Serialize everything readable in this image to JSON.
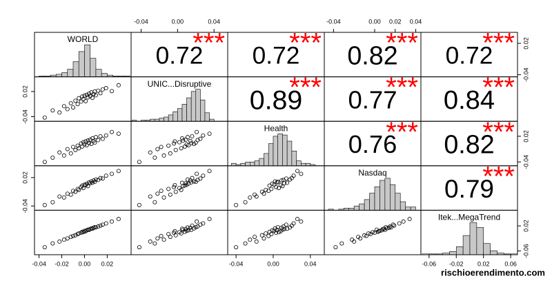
{
  "chart_data": {
    "type": "correlation-matrix",
    "variables": [
      {
        "name": "WORLD",
        "lim": [
          -0.044,
          0.041
        ],
        "xticks": [
          -0.04,
          -0.02,
          {
            "value": 0,
            "label": "0.00"
          },
          0.02
        ],
        "yticks": [
          -0.04,
          0.02
        ],
        "bins": [
          -0.04,
          -0.035,
          -0.03,
          -0.025,
          -0.02,
          -0.015,
          -0.01,
          -0.005,
          0,
          0.005,
          0.01,
          0.015,
          0.02,
          0.025,
          0.03,
          0.035,
          0.04
        ],
        "counts": [
          1,
          1,
          2,
          3,
          5,
          9,
          18,
          30,
          38,
          22,
          9,
          4,
          2,
          1,
          1,
          1
        ],
        "sample": [
          -0.035,
          -0.028,
          -0.022,
          -0.018,
          -0.015,
          -0.012,
          -0.01,
          -0.008,
          -0.006,
          -0.005,
          -0.003,
          -0.002,
          -0.001,
          0,
          0.001,
          0.002,
          0.003,
          0.004,
          0.005,
          0.006,
          0.007,
          0.008,
          0.009,
          0.01,
          0.012,
          0.014,
          0.016,
          0.019,
          0.024,
          0.03
        ]
      },
      {
        "name": "UNIC...Disruptive",
        "lim": [
          -0.051,
          0.055
        ],
        "xticks": [
          -0.04,
          {
            "value": 0,
            "label": "0.00"
          },
          0.04
        ],
        "yticks": [
          -0.04,
          0.02
        ],
        "bins": [
          -0.05,
          -0.045,
          -0.04,
          -0.035,
          -0.03,
          -0.025,
          -0.02,
          -0.015,
          -0.01,
          -0.005,
          0,
          0.005,
          0.01,
          0.015,
          0.02,
          0.025,
          0.03,
          0.035,
          0.04
        ],
        "counts": [
          1,
          0,
          1,
          1,
          2,
          2,
          3,
          4,
          6,
          9,
          12,
          16,
          22,
          28,
          30,
          20,
          8,
          2
        ],
        "sample": [
          -0.042,
          -0.025,
          -0.03,
          -0.015,
          -0.022,
          -0.008,
          -0.018,
          -0.002,
          -0.01,
          0.004,
          -0.004,
          0.008,
          0.002,
          0.01,
          -0.003,
          0.012,
          0.006,
          0.015,
          0.009,
          0.018,
          0.005,
          0.014,
          0.02,
          0.011,
          0.022,
          0.016,
          0.025,
          0.028,
          0.021,
          0.035
        ]
      },
      {
        "name": "Health",
        "lim": [
          -0.049,
          0.055
        ],
        "xticks": [
          -0.04,
          {
            "value": 0,
            "label": "0.00"
          },
          0.04
        ],
        "yticks": [
          -0.04,
          0.02
        ],
        "bins": [
          -0.045,
          -0.04,
          -0.035,
          -0.03,
          -0.025,
          -0.02,
          -0.015,
          -0.01,
          -0.005,
          0,
          0.005,
          0.01,
          0.015,
          0.02,
          0.025,
          0.03,
          0.035,
          0.04,
          0.045
        ],
        "counts": [
          2,
          1,
          2,
          3,
          3,
          4,
          6,
          10,
          18,
          24,
          26,
          25,
          20,
          12,
          4,
          2,
          2,
          1
        ],
        "sample": [
          -0.04,
          -0.03,
          -0.018,
          -0.025,
          -0.01,
          -0.02,
          -0.005,
          -0.012,
          -0.002,
          -0.008,
          0.003,
          -0.004,
          0.006,
          0.001,
          0.008,
          -0.001,
          0.01,
          0.004,
          0.012,
          0.002,
          0.015,
          0.009,
          0.005,
          0.018,
          0.011,
          0.02,
          0.014,
          0.022,
          0.03,
          0.026
        ]
      },
      {
        "name": "Nasdaq",
        "lim": [
          -0.049,
          0.045
        ],
        "xticks": [
          -0.04,
          {
            "value": 0,
            "label": "0.00"
          },
          0.02,
          0.04
        ],
        "yticks": [
          -0.04,
          0.02
        ],
        "bins": [
          -0.045,
          -0.04,
          -0.035,
          -0.03,
          -0.025,
          -0.02,
          -0.015,
          -0.01,
          -0.005,
          0,
          0.005,
          0.01,
          0.015,
          0.02,
          0.025,
          0.03,
          0.035,
          0.04
        ],
        "counts": [
          1,
          0,
          1,
          2,
          2,
          4,
          6,
          10,
          16,
          22,
          28,
          30,
          24,
          16,
          8,
          3,
          3
        ],
        "sample": [
          -0.038,
          -0.032,
          -0.02,
          -0.022,
          -0.014,
          -0.016,
          -0.008,
          -0.01,
          -0.004,
          -0.006,
          0,
          0.003,
          -0.002,
          0.005,
          0.004,
          0.007,
          0.002,
          0.01,
          0.008,
          0.012,
          0.009,
          0.014,
          0.011,
          0.016,
          0.015,
          0.019,
          0.018,
          0.024,
          0.028,
          0.034
        ]
      },
      {
        "name": "Itek...MegaTrend",
        "lim": [
          -0.072,
          0.07
        ],
        "xticks": [
          -0.06,
          -0.02,
          0.02,
          0.06
        ],
        "yticks": [
          -0.06,
          0.02
        ],
        "bins": [
          -0.07,
          -0.06,
          -0.05,
          -0.04,
          -0.03,
          -0.02,
          -0.01,
          0,
          0.01,
          0.02,
          0.03,
          0.04,
          0.05,
          0.06,
          0.07
        ],
        "counts": [
          1,
          1,
          1,
          2,
          4,
          10,
          24,
          40,
          34,
          14,
          5,
          2,
          1,
          1
        ],
        "sample": [
          -0.048,
          -0.036,
          -0.03,
          -0.024,
          -0.02,
          -0.015,
          -0.012,
          -0.01,
          -0.006,
          -0.004,
          -0.002,
          0.001,
          0,
          0.004,
          0.003,
          0.006,
          0.008,
          0.007,
          0.01,
          0.012,
          0.011,
          0.014,
          0.016,
          0.015,
          0.018,
          0.021,
          0.024,
          0.028,
          0.034,
          0.042
        ]
      }
    ],
    "correlations": [
      [
        0.72,
        0.72,
        0.82,
        0.72
      ],
      [
        0.89,
        0.77,
        0.84
      ],
      [
        0.76,
        0.82
      ],
      [
        0.79
      ]
    ],
    "stars": "***",
    "bar_color": "#c8c8c8",
    "star_color": "#ff0000",
    "watermark": "rischioerendimento.com"
  }
}
